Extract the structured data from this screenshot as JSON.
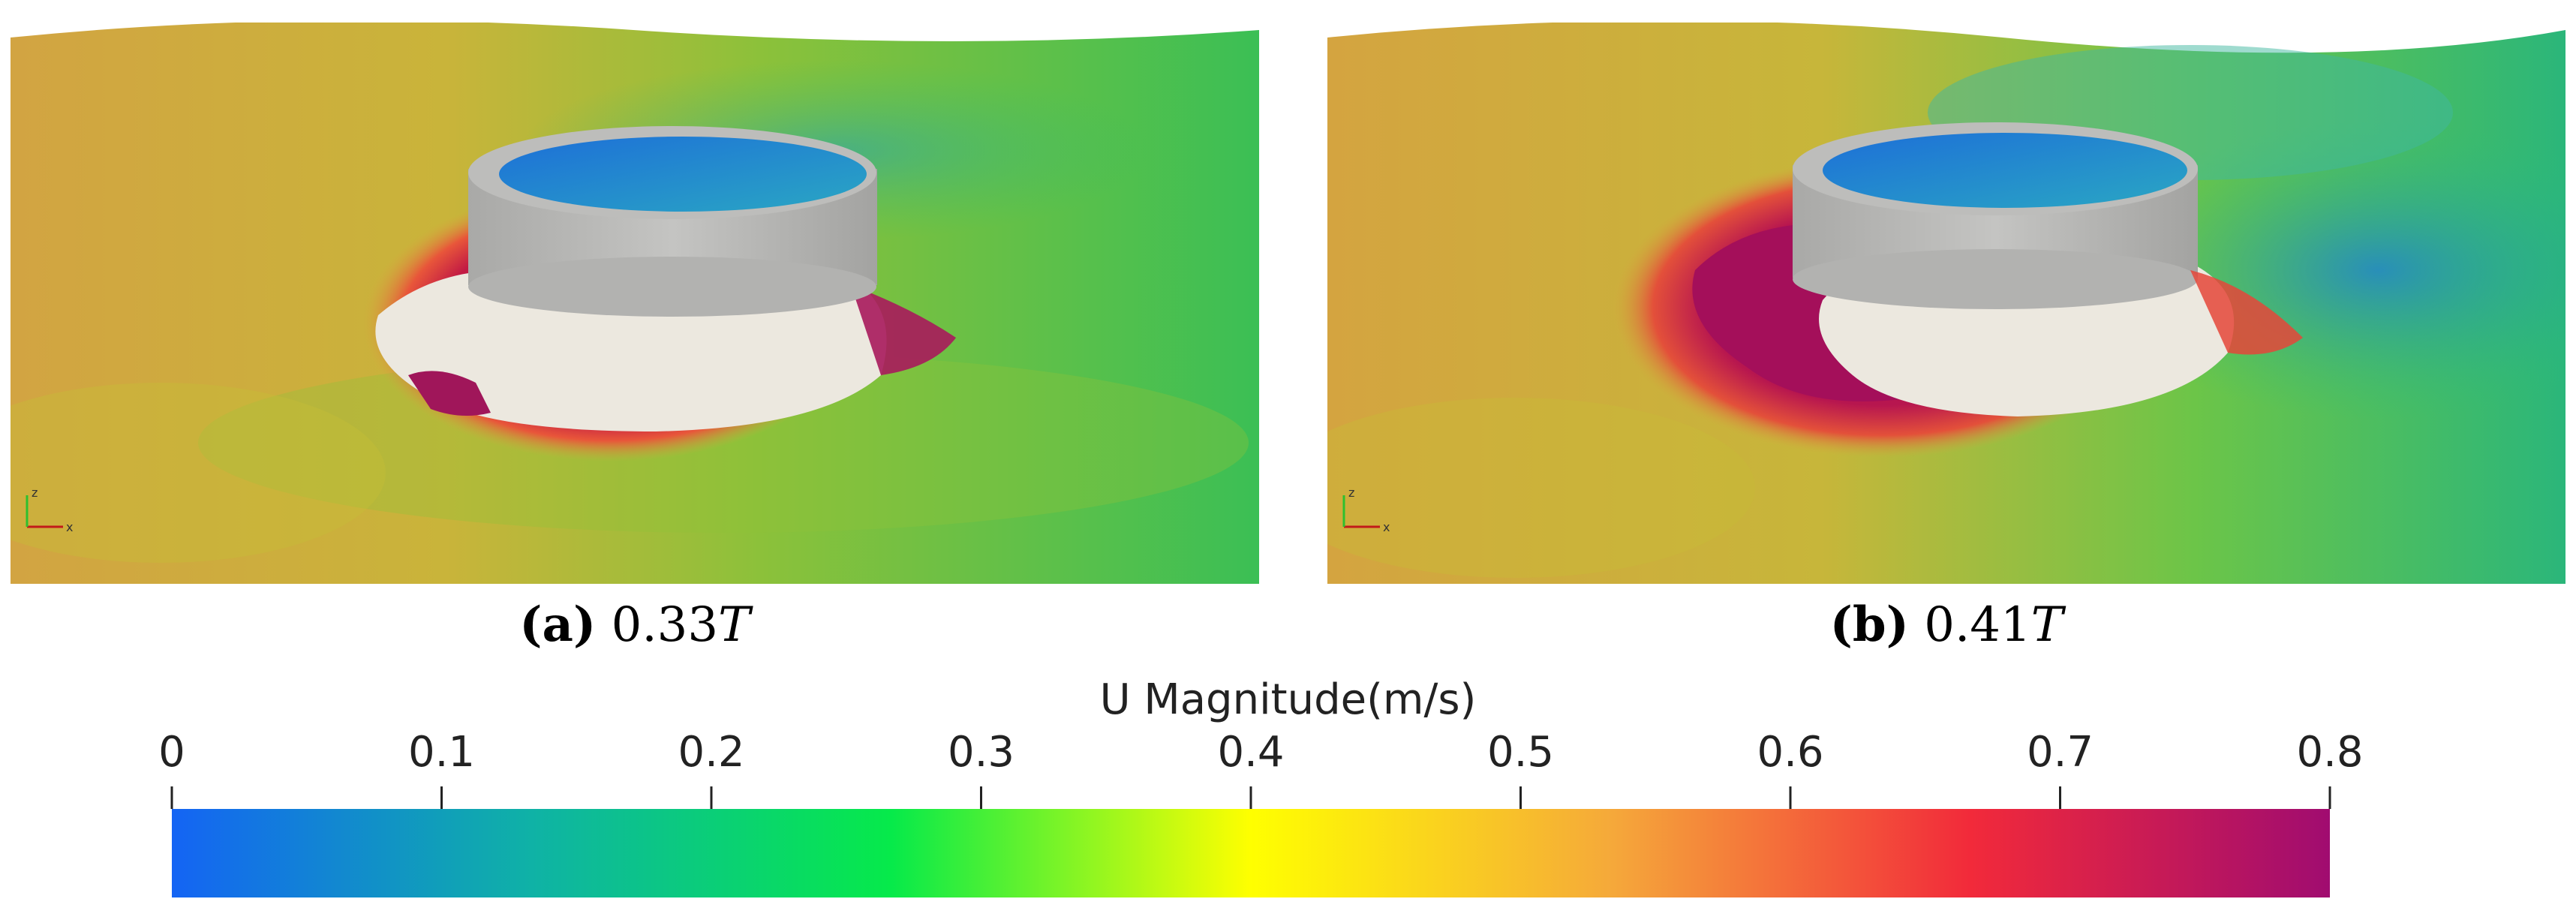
{
  "panels": [
    {
      "id": "a",
      "label": "(a)",
      "value": "0.33",
      "unit": "T"
    },
    {
      "id": "b",
      "label": "(b)",
      "value": "0.41",
      "unit": "T"
    }
  ],
  "colorbar": {
    "title": "U Magnitude(m/s)",
    "ticks": [
      "0",
      "0.1",
      "0.2",
      "0.3",
      "0.4",
      "0.5",
      "0.6",
      "0.7",
      "0.8"
    ],
    "range": [
      0,
      0.8
    ],
    "colors": [
      "#1464f4",
      "#0fb2a6",
      "#06ea4a",
      "#ffff00",
      "#f5a93a",
      "#f22a3a",
      "#a00c70"
    ]
  },
  "axes_triad": {
    "z": "z",
    "x": "x"
  }
}
